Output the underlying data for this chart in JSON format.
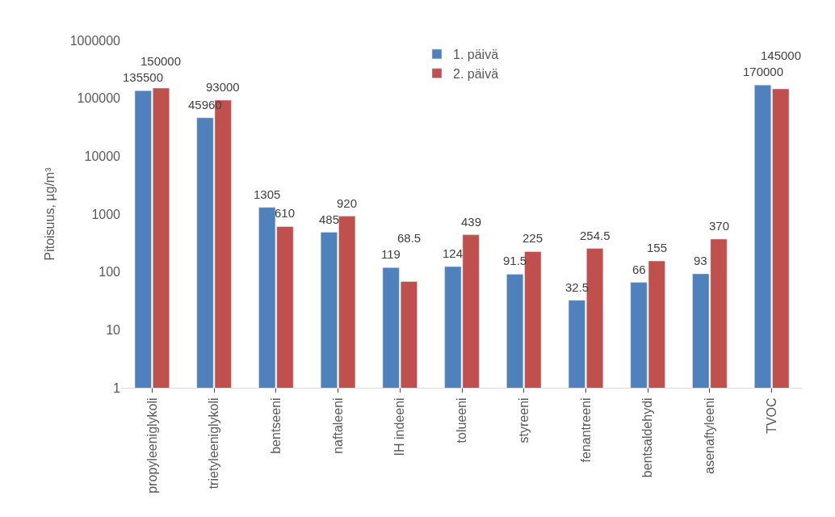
{
  "chart_data": {
    "type": "bar",
    "ylabel": "Pitoisuus, µg/m³",
    "categories": [
      "propyleeniglykoli",
      "trietyleeniglykoli",
      "bentseeni",
      "naftaleeni",
      "IH indeeni",
      "tolueeni",
      "styreeni",
      "fenantreeni",
      "bentsaldehydi",
      "asenaftyleeni",
      "TVOC"
    ],
    "series": [
      {
        "name": "1. päivä",
        "color": "#4f81bd",
        "values": [
          135500,
          45960,
          1305,
          485,
          119,
          124,
          91.5,
          32.5,
          66,
          93,
          170000
        ]
      },
      {
        "name": "2. päivä",
        "color": "#c0504d",
        "values": [
          150000,
          93000,
          610,
          920,
          68.5,
          439,
          225,
          254.5,
          155,
          370,
          145000
        ]
      }
    ],
    "log": "y",
    "ylim": [
      1,
      1000000
    ],
    "yticks": [
      1,
      10,
      100,
      1000,
      10000,
      100000,
      1000000
    ],
    "legend": "top",
    "data_labels": true
  }
}
